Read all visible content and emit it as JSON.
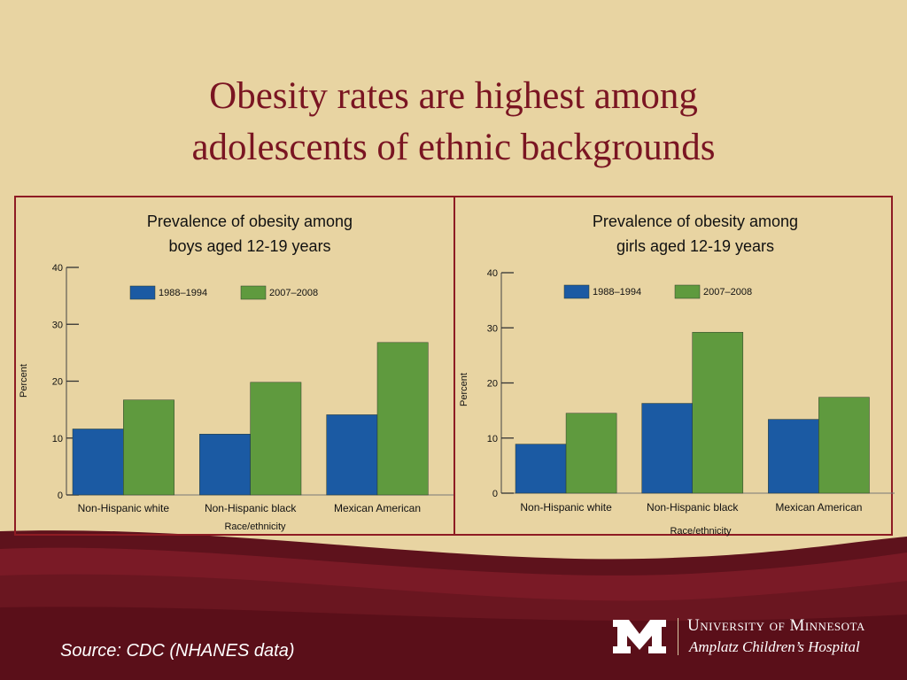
{
  "slide": {
    "title_line1": "Obesity rates are highest among",
    "title_line2": "adolescents of ethnic backgrounds",
    "source": "Source: CDC (NHANES data)",
    "university": "University of Minnesota",
    "hospital": "Amplatz Children’s Hospital"
  },
  "colors": {
    "background": "#e8d4a2",
    "title": "#7a1522",
    "panel_border": "#8e1b23",
    "footer_band": "#6b1620",
    "series_1988": "#1b5aa3",
    "series_2007": "#5f9a3e"
  },
  "chart_data": [
    {
      "type": "bar",
      "title_line1": "Prevalence of obesity among",
      "title_line2": "boys aged 12-19 years",
      "categories": [
        "Non-Hispanic white",
        "Non-Hispanic black",
        "Mexican American"
      ],
      "series": [
        {
          "name": "1988–1994",
          "values": [
            11.6,
            10.7,
            14.1
          ]
        },
        {
          "name": "2007–2008",
          "values": [
            16.7,
            19.8,
            26.8
          ]
        }
      ],
      "xlabel": "Race/ethnicity",
      "ylabel": "Percent",
      "ylim": [
        0,
        40
      ],
      "yticks": [
        0,
        10,
        20,
        30,
        40
      ],
      "legend_position": "top",
      "grid": false
    },
    {
      "type": "bar",
      "title_line1": "Prevalence of obesity among",
      "title_line2": "girls aged 12-19 years",
      "categories": [
        "Non-Hispanic white",
        "Non-Hispanic black",
        "Mexican American"
      ],
      "series": [
        {
          "name": "1988–1994",
          "values": [
            8.9,
            16.3,
            13.4
          ]
        },
        {
          "name": "2007–2008",
          "values": [
            14.5,
            29.2,
            17.4
          ]
        }
      ],
      "xlabel": "Race/ethnicity",
      "ylabel": "Percent",
      "ylim": [
        0,
        40
      ],
      "yticks": [
        0,
        10,
        20,
        30,
        40
      ],
      "legend_position": "top",
      "grid": false
    }
  ]
}
